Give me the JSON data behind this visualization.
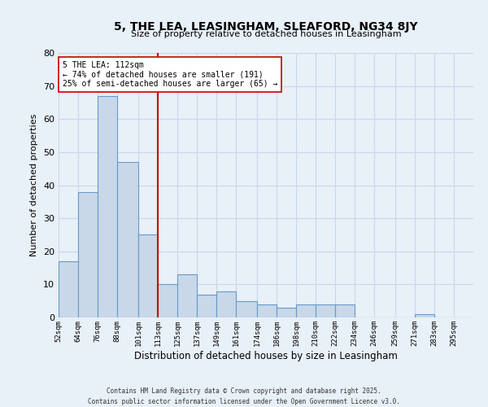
{
  "title": "5, THE LEA, LEASINGHAM, SLEAFORD, NG34 8JY",
  "subtitle": "Size of property relative to detached houses in Leasingham",
  "xlabel": "Distribution of detached houses by size in Leasingham",
  "ylabel": "Number of detached properties",
  "bar_labels": [
    "52sqm",
    "64sqm",
    "76sqm",
    "88sqm",
    "101sqm",
    "113sqm",
    "125sqm",
    "137sqm",
    "149sqm",
    "161sqm",
    "174sqm",
    "186sqm",
    "198sqm",
    "210sqm",
    "222sqm",
    "234sqm",
    "246sqm",
    "259sqm",
    "271sqm",
    "283sqm",
    "295sqm"
  ],
  "bar_heights": [
    17,
    38,
    67,
    47,
    25,
    10,
    13,
    7,
    8,
    5,
    4,
    3,
    4,
    4,
    4,
    0,
    0,
    0,
    1,
    0,
    0
  ],
  "bin_edges": [
    52,
    64,
    76,
    88,
    101,
    113,
    125,
    137,
    149,
    161,
    174,
    186,
    198,
    210,
    222,
    234,
    246,
    259,
    271,
    283,
    295,
    307
  ],
  "bar_color": "#c8d8e8",
  "bar_edge_color": "#6699cc",
  "ref_line_x": 113,
  "ref_line_color": "#cc0000",
  "annotation_text": "5 THE LEA: 112sqm\n← 74% of detached houses are smaller (191)\n25% of semi-detached houses are larger (65) →",
  "annotation_box_color": "#ffffff",
  "annotation_box_edge": "#cc0000",
  "ylim": [
    0,
    80
  ],
  "yticks": [
    0,
    10,
    20,
    30,
    40,
    50,
    60,
    70,
    80
  ],
  "grid_color": "#c8d8e8",
  "bg_color": "#e8f0f8",
  "footer_line1": "Contains HM Land Registry data © Crown copyright and database right 2025.",
  "footer_line2": "Contains public sector information licensed under the Open Government Licence v3.0."
}
